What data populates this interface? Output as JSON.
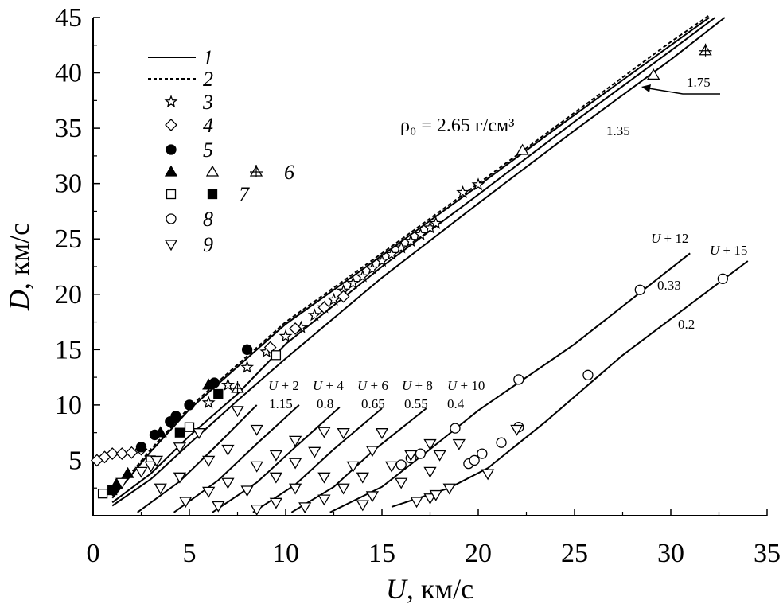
{
  "chart_data": {
    "type": "scatter",
    "title": "",
    "xlabel": {
      "var": "U",
      "unit": ", км/с"
    },
    "ylabel": {
      "var": "D",
      "unit": ", км/с"
    },
    "xlim": [
      0,
      35
    ],
    "ylim": [
      0,
      45
    ],
    "xticks": [
      "0",
      "5",
      "10",
      "15",
      "20",
      "25",
      "30",
      "35"
    ],
    "yticks": [
      "5",
      "10",
      "15",
      "20",
      "25",
      "30",
      "35",
      "40",
      "45"
    ],
    "grid": false,
    "legend": {
      "placement": "top-left",
      "entries": [
        {
          "label": "1",
          "marker": "line-solid"
        },
        {
          "label": "2",
          "marker": "line-dashed"
        },
        {
          "label": "3",
          "marker": "star"
        },
        {
          "label": "4",
          "marker": "diamond"
        },
        {
          "label": "5",
          "marker": "filled-circle"
        },
        {
          "label": "6",
          "marker": "triangles"
        },
        {
          "label": "7",
          "marker": "squares"
        },
        {
          "label": "8",
          "marker": "open-circle"
        },
        {
          "label": "9",
          "marker": "down-triangle"
        }
      ]
    },
    "annotation": "ρ₀ = 2.65 г/см³",
    "main_curves": [
      {
        "style": "solid",
        "points": [
          [
            1.0,
            1.6
          ],
          [
            3.0,
            5.8
          ],
          [
            5.0,
            9.6
          ],
          [
            10.0,
            17.3
          ],
          [
            15.0,
            23.5
          ],
          [
            20.0,
            29.8
          ],
          [
            25.0,
            36.2
          ],
          [
            30.0,
            42.5
          ],
          [
            32.0,
            45.0
          ]
        ]
      },
      {
        "style": "dashed",
        "points": [
          [
            1.0,
            1.8
          ],
          [
            3.0,
            6.0
          ],
          [
            5.0,
            9.8
          ],
          [
            10.0,
            17.5
          ],
          [
            15.0,
            23.7
          ],
          [
            20.0,
            30.0
          ],
          [
            25.0,
            36.4
          ],
          [
            30.0,
            42.8
          ],
          [
            32.0,
            45.2
          ]
        ]
      },
      {
        "label": "1.75",
        "style": "solid",
        "points": [
          [
            1.0,
            1.2
          ],
          [
            3.0,
            3.8
          ],
          [
            5.0,
            7.2
          ],
          [
            7.5,
            11.0
          ],
          [
            10.0,
            15.5
          ],
          [
            15.0,
            22.5
          ],
          [
            20.0,
            29.0
          ],
          [
            25.0,
            35.6
          ],
          [
            30.0,
            42.0
          ],
          [
            32.3,
            45.0
          ]
        ]
      },
      {
        "label": "1.35",
        "style": "solid",
        "points": [
          [
            1.0,
            0.9
          ],
          [
            3.0,
            3.3
          ],
          [
            5.0,
            6.5
          ],
          [
            7.5,
            10.4
          ],
          [
            10.0,
            14.2
          ],
          [
            15.0,
            21.5
          ],
          [
            20.0,
            28.2
          ],
          [
            25.0,
            34.8
          ],
          [
            30.0,
            41.2
          ],
          [
            32.8,
            45.0
          ]
        ]
      }
    ],
    "shifted_curves": [
      {
        "label": "U + 2",
        "density": "1.15",
        "points": [
          [
            2.3,
            0.3
          ],
          [
            4.5,
            3.1
          ],
          [
            6.5,
            6.5
          ],
          [
            8.5,
            10.0
          ]
        ]
      },
      {
        "label": "U + 4",
        "density": "0.8",
        "points": [
          [
            4.2,
            0.3
          ],
          [
            6.5,
            3.2
          ],
          [
            8.5,
            6.5
          ],
          [
            10.7,
            10.0
          ]
        ]
      },
      {
        "label": "U + 6",
        "density": "0.65",
        "points": [
          [
            6.2,
            0.3
          ],
          [
            8.5,
            3.0
          ],
          [
            10.5,
            6.2
          ],
          [
            12.8,
            9.8
          ]
        ]
      },
      {
        "label": "U + 8",
        "density": "0.55",
        "points": [
          [
            8.3,
            0.3
          ],
          [
            10.5,
            2.8
          ],
          [
            12.5,
            6.0
          ],
          [
            15.0,
            9.7
          ]
        ]
      },
      {
        "label": "U + 10",
        "density": "0.4",
        "points": [
          [
            10.3,
            0.3
          ],
          [
            12.5,
            2.6
          ],
          [
            14.5,
            5.8
          ],
          [
            17.3,
            9.7
          ]
        ]
      },
      {
        "label": "U + 12",
        "density": "0.33",
        "points": [
          [
            12.3,
            0.3
          ],
          [
            15.0,
            2.6
          ],
          [
            17.5,
            6.0
          ],
          [
            20.0,
            9.5
          ],
          [
            25.0,
            15.5
          ],
          [
            31.0,
            23.7
          ]
        ]
      },
      {
        "label": "U + 15",
        "density": "0.2",
        "points": [
          [
            15.5,
            0.8
          ],
          [
            18.5,
            2.5
          ],
          [
            20.5,
            4.3
          ],
          [
            23.5,
            8.5
          ],
          [
            27.5,
            14.5
          ],
          [
            34.0,
            23.0
          ]
        ]
      }
    ],
    "series": [
      {
        "name": "3",
        "marker": "star",
        "points": [
          [
            6.0,
            10.2
          ],
          [
            7.0,
            11.8
          ],
          [
            8.0,
            13.4
          ],
          [
            9.0,
            14.8
          ],
          [
            10.0,
            16.2
          ],
          [
            10.8,
            17.0
          ],
          [
            11.5,
            18.1
          ],
          [
            12.0,
            18.8
          ],
          [
            12.5,
            19.5
          ],
          [
            13.0,
            20.3
          ],
          [
            13.5,
            21.0
          ],
          [
            14.0,
            21.6
          ],
          [
            14.5,
            22.3
          ],
          [
            15.0,
            23.0
          ],
          [
            15.5,
            23.6
          ],
          [
            16.0,
            24.2
          ],
          [
            16.5,
            24.8
          ],
          [
            17.0,
            25.4
          ],
          [
            17.5,
            26.0
          ],
          [
            17.8,
            26.4
          ],
          [
            19.2,
            29.2
          ],
          [
            20.0,
            29.9
          ]
        ]
      },
      {
        "name": "4",
        "marker": "diamond",
        "points": [
          [
            0.2,
            5.0
          ],
          [
            0.6,
            5.3
          ],
          [
            1.0,
            5.6
          ],
          [
            1.5,
            5.6
          ],
          [
            2.0,
            5.7
          ],
          [
            2.5,
            6.0
          ],
          [
            9.2,
            15.2
          ],
          [
            10.5,
            16.9
          ],
          [
            12.0,
            18.8
          ],
          [
            13.0,
            19.8
          ]
        ]
      },
      {
        "name": "5",
        "marker": "filled-circle",
        "points": [
          [
            2.5,
            6.2
          ],
          [
            3.2,
            7.3
          ],
          [
            4.0,
            8.5
          ],
          [
            4.3,
            9.0
          ],
          [
            5.0,
            10.0
          ],
          [
            6.3,
            12.0
          ],
          [
            8.0,
            15.0
          ]
        ]
      },
      {
        "name": "6",
        "marker": "triangles",
        "points": [
          [
            1.2,
            2.8
          ],
          [
            1.8,
            3.8
          ],
          [
            3.5,
            7.5
          ],
          [
            6.0,
            11.8
          ],
          [
            22.3,
            33.0
          ],
          [
            29.1,
            39.8
          ],
          [
            31.8,
            42.0
          ],
          [
            7.5,
            11.5
          ]
        ]
      },
      {
        "name": "7",
        "marker": "squares",
        "points": [
          [
            0.5,
            2.0
          ],
          [
            1.0,
            2.3
          ],
          [
            3.0,
            5.0
          ],
          [
            4.5,
            7.5
          ],
          [
            5.0,
            8.0
          ],
          [
            6.5,
            11.0
          ],
          [
            9.5,
            14.5
          ]
        ]
      },
      {
        "name": "8",
        "marker": "open-circle",
        "points": [
          [
            16.0,
            4.6
          ],
          [
            16.5,
            5.2
          ],
          [
            17.0,
            5.6
          ],
          [
            18.8,
            7.9
          ],
          [
            19.5,
            4.7
          ],
          [
            19.8,
            5.0
          ],
          [
            20.2,
            5.6
          ],
          [
            21.2,
            6.6
          ],
          [
            22.1,
            8.0
          ],
          [
            22.1,
            12.3
          ],
          [
            25.7,
            12.7
          ],
          [
            28.4,
            20.4
          ],
          [
            32.7,
            21.4
          ]
        ]
      },
      {
        "name": "9",
        "marker": "down-triangle",
        "points": [
          [
            1.5,
            3.0
          ],
          [
            2.5,
            4.0
          ],
          [
            3.0,
            4.5
          ],
          [
            3.3,
            5.0
          ],
          [
            4.5,
            6.2
          ],
          [
            5.5,
            7.5
          ],
          [
            7.5,
            9.5
          ],
          [
            3.5,
            2.5
          ],
          [
            4.5,
            3.5
          ],
          [
            6.0,
            5.0
          ],
          [
            7.0,
            6.0
          ],
          [
            8.5,
            7.8
          ],
          [
            4.8,
            1.3
          ],
          [
            6.0,
            2.2
          ],
          [
            7.0,
            3.0
          ],
          [
            8.5,
            4.5
          ],
          [
            9.5,
            5.5
          ],
          [
            10.5,
            6.8
          ],
          [
            12.0,
            7.6
          ],
          [
            6.5,
            0.9
          ],
          [
            8.0,
            2.3
          ],
          [
            9.5,
            3.5
          ],
          [
            10.5,
            4.8
          ],
          [
            11.5,
            5.8
          ],
          [
            13.0,
            7.5
          ],
          [
            8.5,
            0.6
          ],
          [
            9.5,
            1.2
          ],
          [
            10.5,
            2.5
          ],
          [
            12.0,
            3.5
          ],
          [
            13.5,
            4.5
          ],
          [
            14.5,
            5.9
          ],
          [
            15.0,
            7.5
          ],
          [
            11.0,
            0.8
          ],
          [
            12.0,
            1.5
          ],
          [
            13.0,
            2.5
          ],
          [
            14.0,
            3.5
          ],
          [
            15.5,
            4.5
          ],
          [
            16.5,
            5.5
          ],
          [
            17.5,
            6.5
          ],
          [
            14.0,
            1.0
          ],
          [
            14.5,
            1.8
          ],
          [
            16.0,
            3.0
          ],
          [
            17.5,
            4.0
          ],
          [
            18.0,
            5.5
          ],
          [
            19.0,
            6.5
          ],
          [
            16.8,
            1.3
          ],
          [
            17.5,
            1.6
          ],
          [
            18.5,
            2.5
          ],
          [
            20.5,
            3.8
          ],
          [
            22.0,
            7.8
          ],
          [
            17.8,
            1.9
          ]
        ]
      }
    ]
  }
}
